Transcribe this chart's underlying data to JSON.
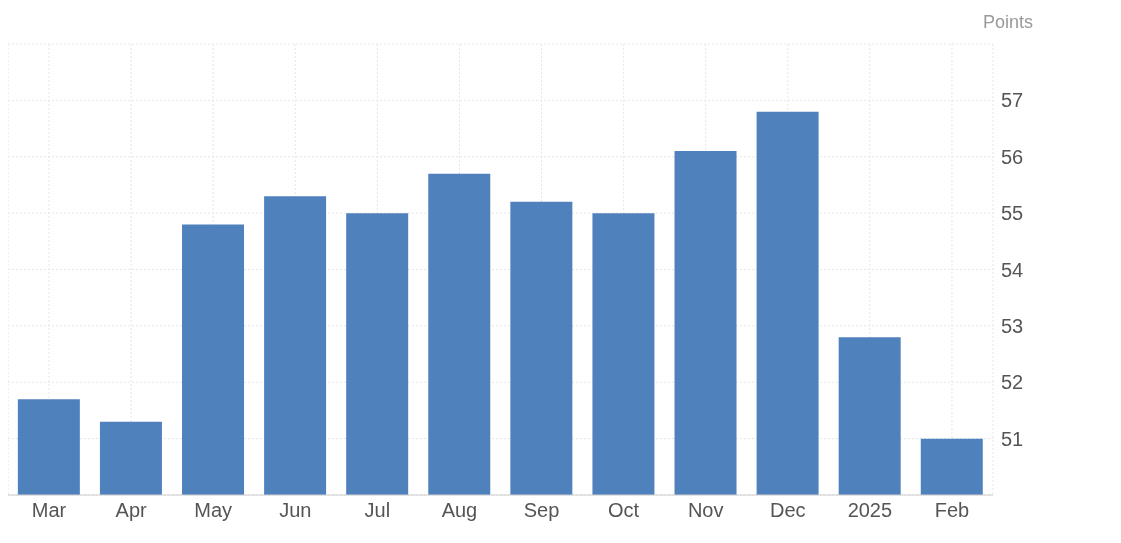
{
  "chart_data": {
    "type": "bar",
    "ylabel": "Points",
    "categories": [
      "Mar",
      "Apr",
      "May",
      "Jun",
      "Jul",
      "Aug",
      "Sep",
      "Oct",
      "Nov",
      "Dec",
      "2025",
      "Feb"
    ],
    "values": [
      51.7,
      51.3,
      54.8,
      55.3,
      55.0,
      55.7,
      55.2,
      55.0,
      56.1,
      56.8,
      52.8,
      51.0
    ],
    "color": "#4f81bd",
    "ylim": [
      50,
      58
    ],
    "yticks": [
      51,
      52,
      53,
      54,
      55,
      56,
      57
    ],
    "grid": true
  }
}
